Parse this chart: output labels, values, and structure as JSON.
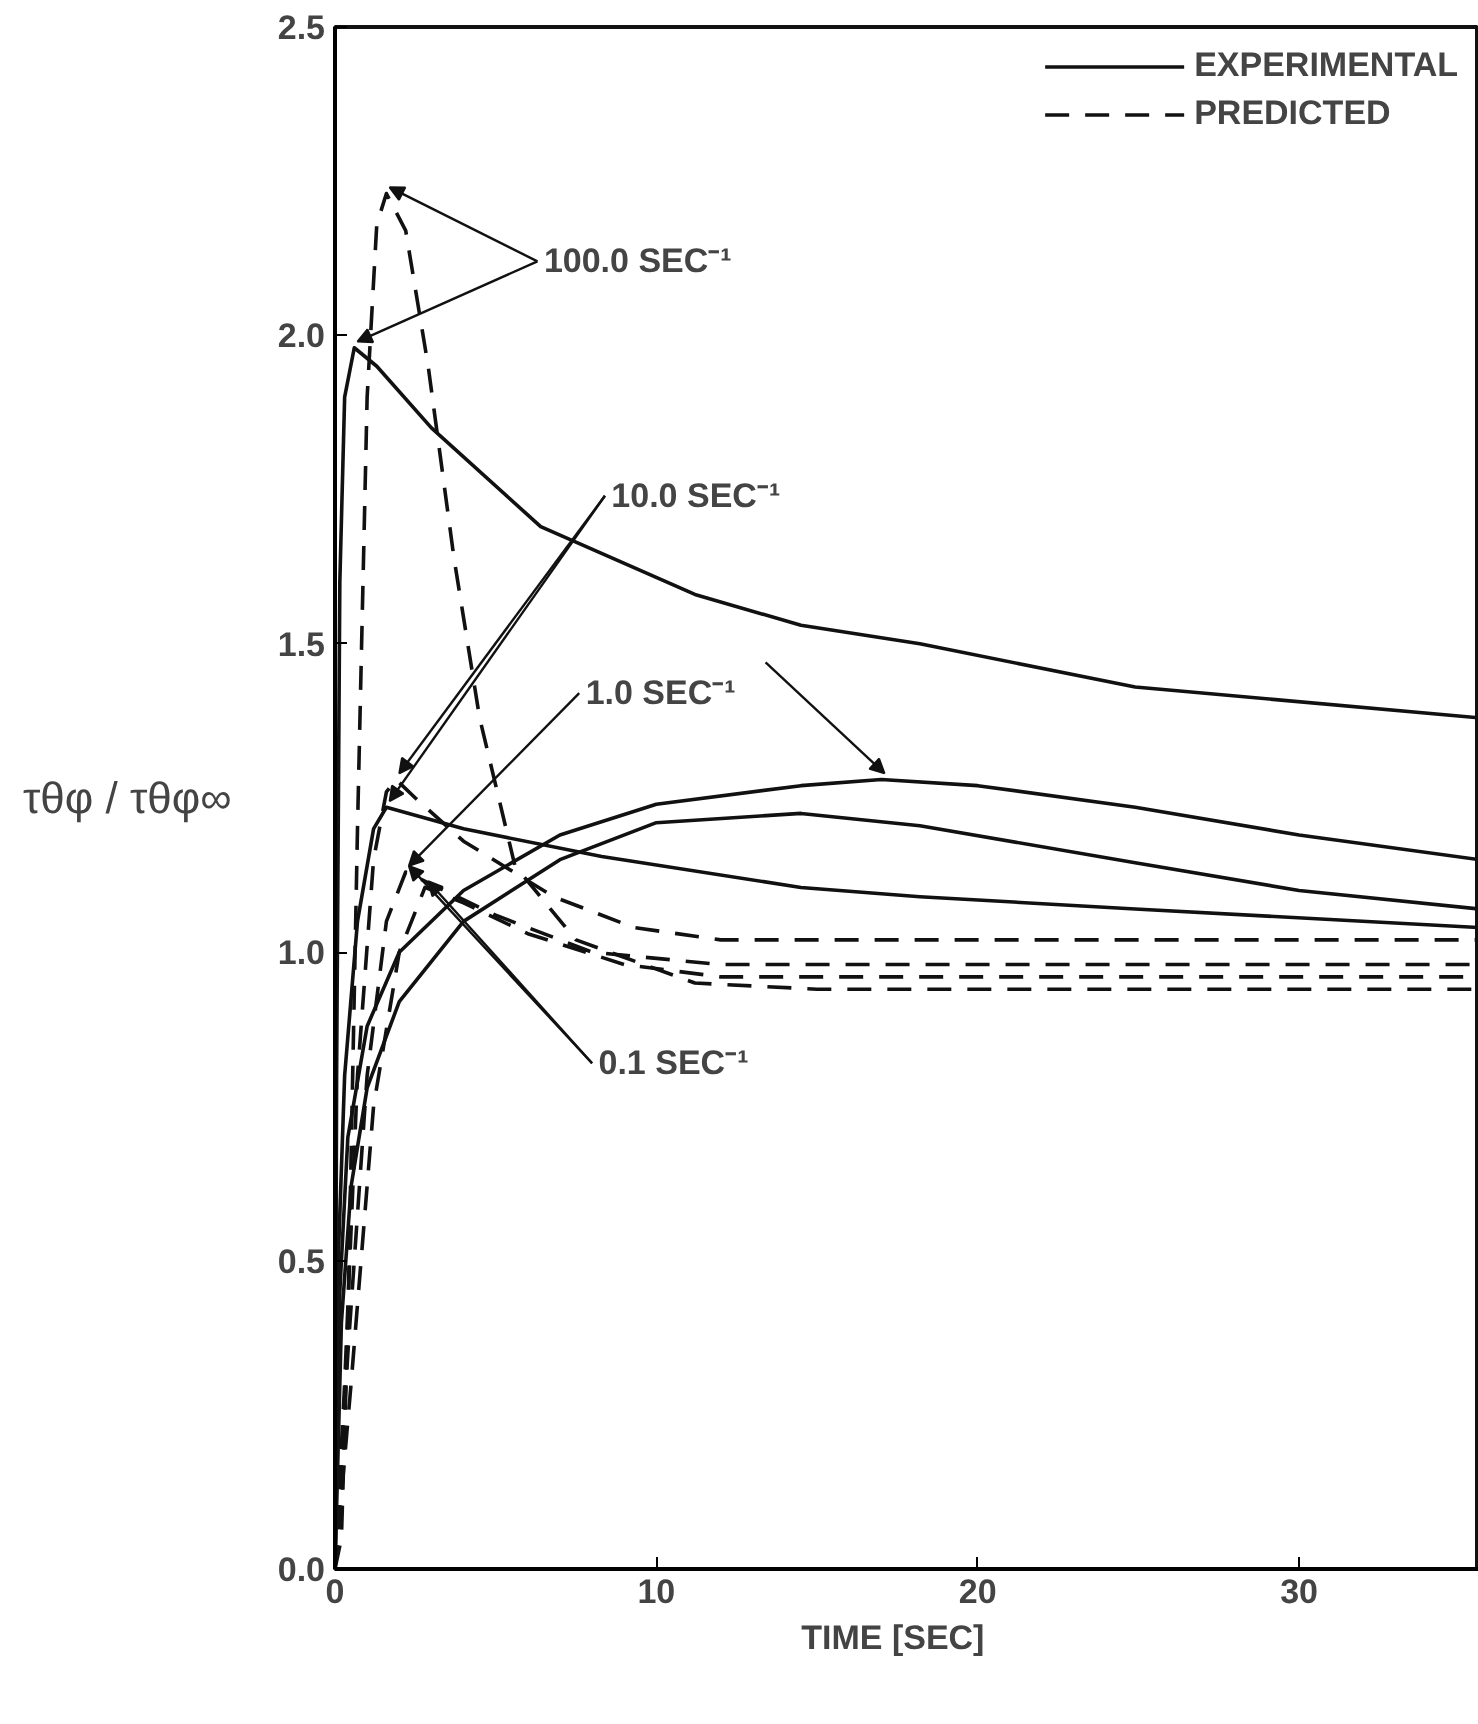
{
  "chart_data": {
    "type": "line",
    "xlabel": "TIME    [SEC]",
    "ylabel": "τθφ / τθφ∞",
    "xlim": [
      0,
      35.6
    ],
    "ylim": [
      0,
      2.5
    ],
    "xticks": [
      0,
      10,
      20,
      30
    ],
    "yticks": [
      {
        "value": 0,
        "label": "0.0"
      },
      {
        "value": 0.5,
        "label": "0.5"
      },
      {
        "value": 1,
        "label": "1.0"
      },
      {
        "value": 1.5,
        "label": "1.5"
      },
      {
        "value": 2,
        "label": "2.0"
      },
      {
        "value": 2.5,
        "label": "2.5"
      }
    ],
    "grid": false,
    "legend": "top right",
    "annotations": [
      {
        "text": "100.0  SEC⁻¹",
        "x": 0.6,
        "y": 1.98
      },
      {
        "text": "10.0  SEC⁻¹",
        "x": 1.6,
        "y": 1.235
      },
      {
        "text": "1.0  SEC⁻¹",
        "x": 17,
        "y": 1.28
      },
      {
        "text": "0.1  SEC⁻¹",
        "x": 2.2,
        "y": 1.13
      }
    ],
    "series": [
      {
        "name": "EXPERIMENTAL",
        "color": "#111111",
        "line_style": "solid",
        "x": [
          0,
          0.05,
          0.15,
          0.3,
          0.6,
          1.3,
          3,
          6.4,
          11.2,
          14.5,
          18.2,
          24.9,
          35.6
        ],
        "values": [
          0,
          0.8,
          1.6,
          1.9,
          1.98,
          1.95,
          1.85,
          1.69,
          1.58,
          1.53,
          1.5,
          1.43,
          1.38
        ]
      },
      {
        "color": "#111111",
        "line_style": "solid",
        "x": [
          0,
          0.1,
          0.3,
          0.7,
          1.2,
          1.6,
          4,
          8.3,
          14.5,
          18.2,
          24.9,
          35.6
        ],
        "values": [
          0,
          0.5,
          0.8,
          1.05,
          1.2,
          1.235,
          1.2,
          1.155,
          1.105,
          1.09,
          1.07,
          1.04
        ]
      },
      {
        "color": "#111111",
        "line_style": "solid",
        "x": [
          0,
          0.15,
          0.4,
          1,
          2,
          4,
          7,
          10,
          14.5,
          17,
          20,
          24.9,
          30,
          35.6
        ],
        "values": [
          0,
          0.45,
          0.7,
          0.88,
          1.0,
          1.1,
          1.19,
          1.24,
          1.27,
          1.28,
          1.27,
          1.235,
          1.19,
          1.15
        ]
      },
      {
        "color": "#111111",
        "line_style": "solid",
        "x": [
          0,
          0.2,
          0.5,
          1,
          2,
          4,
          7,
          10,
          14.5,
          18.2,
          24.9,
          30,
          35.6
        ],
        "values": [
          0,
          0.4,
          0.62,
          0.78,
          0.92,
          1.05,
          1.15,
          1.21,
          1.225,
          1.205,
          1.145,
          1.1,
          1.07
        ]
      },
      {
        "name": "PREDICTED",
        "color": "#111111",
        "line_style": "dashed",
        "x": [
          0,
          0.2,
          0.4,
          0.7,
          1.0,
          1.3,
          1.6,
          1.9,
          2.2,
          2.9,
          3.7,
          4.5,
          5.6,
          7.5,
          11.2,
          15,
          20,
          25,
          30,
          35.6
        ],
        "values": [
          0,
          0.05,
          0.4,
          1.2,
          1.9,
          2.18,
          2.23,
          2.2,
          2.17,
          1.95,
          1.64,
          1.38,
          1.14,
          1.02,
          0.95,
          0.94,
          0.94,
          0.94,
          0.94,
          0.94
        ]
      },
      {
        "color": "#111111",
        "line_style": "dashed",
        "x": [
          0,
          0.3,
          0.7,
          1.2,
          1.6,
          1.9,
          2.5,
          4,
          6.8,
          9.3,
          12,
          15,
          20,
          25,
          30,
          35.6
        ],
        "values": [
          0,
          0.3,
          0.8,
          1.15,
          1.26,
          1.28,
          1.25,
          1.18,
          1.09,
          1.04,
          1.02,
          1.02,
          1.02,
          1.02,
          1.02,
          1.02
        ]
      },
      {
        "color": "#111111",
        "line_style": "dashed",
        "x": [
          0,
          0.4,
          1,
          1.6,
          2.2,
          3,
          5,
          8,
          12,
          15,
          20,
          25,
          30,
          35.6
        ],
        "values": [
          0,
          0.35,
          0.8,
          1.05,
          1.13,
          1.11,
          1.06,
          1.0,
          0.98,
          0.98,
          0.98,
          0.98,
          0.98,
          0.98
        ]
      },
      {
        "color": "#111111",
        "line_style": "dashed",
        "x": [
          0,
          0.5,
          1.2,
          2,
          2.8,
          4,
          6,
          9,
          12,
          15,
          20,
          25,
          30,
          35.6
        ],
        "values": [
          0,
          0.3,
          0.75,
          1.0,
          1.105,
          1.08,
          1.03,
          0.98,
          0.96,
          0.96,
          0.96,
          0.96,
          0.96,
          0.96
        ]
      }
    ]
  }
}
